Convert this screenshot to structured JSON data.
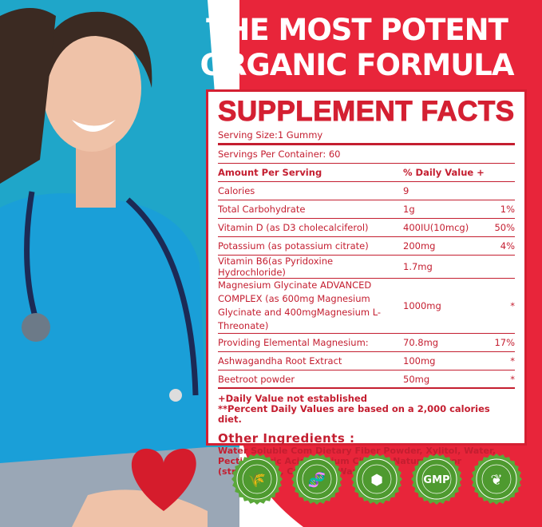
{
  "headline": {
    "line1": "THE MOST POTENT",
    "line2": "ORGANIC FORMULA"
  },
  "facts": {
    "title": "SUPPLEMENT FACTS",
    "serving_size": "Serving Size:1 Gummy",
    "servings_per_container": "Servings Per Container: 60",
    "header": {
      "name": "Amount Per Serving",
      "dv": "% Daily Value +"
    },
    "rows": [
      {
        "name": "Calories",
        "amount": "9",
        "dv": ""
      },
      {
        "name": "Total Carbohydrate",
        "amount": "1g",
        "dv": "1%"
      },
      {
        "name": "Vitamin D (as D3 cholecalciferol)",
        "amount": "400IU(10mcg)",
        "dv": "50%"
      },
      {
        "name": "Potassium (as potassium citrate)",
        "amount": "200mg",
        "dv": "4%"
      },
      {
        "name": "Vitamin B6(as Pyridoxine Hydrochloride)",
        "amount": "1.7mg",
        "dv": ""
      },
      {
        "name": "Magnesium Glycinate ADVANCED COMPLEX (as 600mg Magnesium Glycinate and 400mgMagnesium L-Threonate)",
        "amount": "1000mg",
        "dv": "*"
      },
      {
        "name": "Providing Elemental Magnesium:",
        "amount": "70.8mg",
        "dv": "17%"
      },
      {
        "name": "Ashwagandha Root Extract",
        "amount": "100mg",
        "dv": "*"
      },
      {
        "name": "Beetroot powder",
        "amount": "50mg",
        "dv": "*"
      }
    ],
    "footnote1": "+Daily Value not established",
    "footnote2": "**Percent Daily Values are based on a 2,000 calories diet.",
    "other_title": "Other Ingredients :",
    "other_text": "Water Soluble Com Dietary Fiber Powder, Xylitol, Water, Pectin, Citric Acid, Sodium Citrate, Natural flavor (strawberry), Carnauba Wax"
  },
  "badges": [
    {
      "icon": "wheat-icon",
      "label": ""
    },
    {
      "icon": "dna-icon",
      "label": ""
    },
    {
      "icon": "sugar-cube-icon",
      "label": ""
    },
    {
      "icon": "gmp-icon",
      "label": "GMP"
    },
    {
      "icon": "leaf-icon",
      "label": ""
    }
  ],
  "colors": {
    "brand_red": "#e8253a",
    "text_red": "#c41e30",
    "badge_green": "#4e9a2f",
    "scrubs_blue": "#1aa3d6"
  }
}
